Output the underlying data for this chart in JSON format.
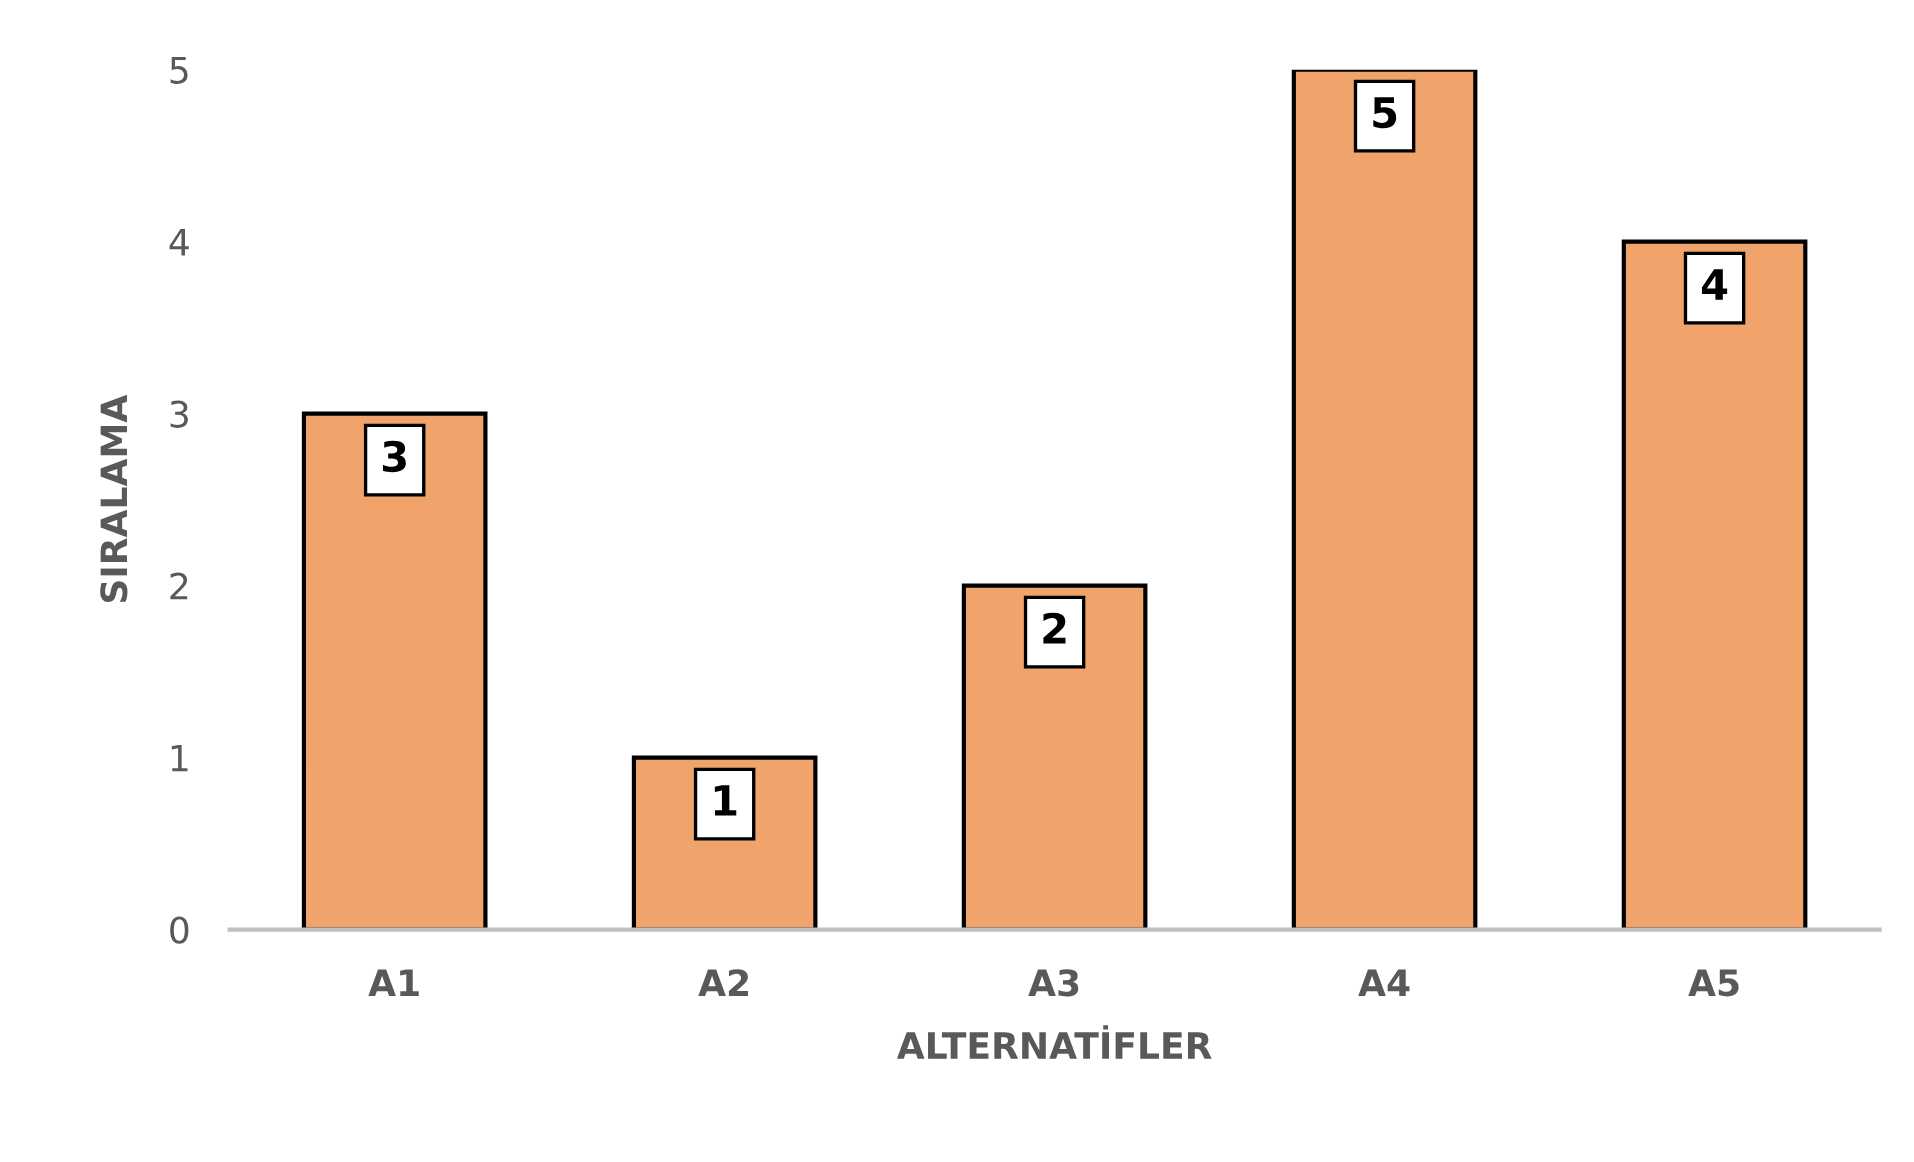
{
  "chart_data": {
    "type": "bar",
    "xlabel": "ALTERNATİFLER",
    "ylabel": "SIRALAMA",
    "categories": [
      "A1",
      "A2",
      "A3",
      "A4",
      "A5"
    ],
    "values": [
      3,
      1,
      2,
      5,
      4
    ],
    "color": "#f0a46c",
    "ylim": [
      0,
      5
    ],
    "yticks": [
      0,
      1,
      2,
      3,
      4,
      5
    ],
    "grid": false,
    "data_labels": true
  }
}
